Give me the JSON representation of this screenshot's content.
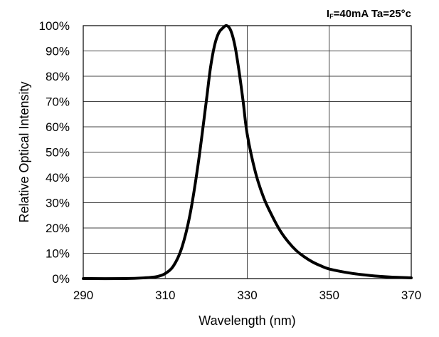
{
  "chart_data": {
    "type": "line",
    "title": "",
    "condition": {
      "prefix": "I",
      "subscript": "F",
      "text": "=40mA Ta=25°c"
    },
    "xlabel": "Wavelength (nm)",
    "ylabel": "Relative Optical Intensity",
    "xlim": [
      290,
      370
    ],
    "ylim": [
      0,
      100
    ],
    "x_ticks": [
      290,
      310,
      330,
      350,
      370
    ],
    "x_tick_labels": [
      "290",
      "310",
      "330",
      "350",
      "370"
    ],
    "y_ticks": [
      0,
      10,
      20,
      30,
      40,
      50,
      60,
      70,
      80,
      90,
      100
    ],
    "y_tick_labels": [
      "0%",
      "10%",
      "20%",
      "30%",
      "40%",
      "50%",
      "60%",
      "70%",
      "80%",
      "90%",
      "100%"
    ],
    "grid": true,
    "series": [
      {
        "name": "Relative Optical Intensity",
        "x": [
          290,
          300,
          305,
          308,
          310,
          312,
          314,
          316,
          318,
          320,
          321,
          322,
          323,
          324,
          325,
          326,
          327,
          328,
          329,
          330,
          332,
          334,
          336,
          338,
          340,
          342,
          344,
          346,
          348,
          350,
          355,
          360,
          365,
          370
        ],
        "y": [
          0,
          0,
          0.3,
          0.8,
          2,
          5,
          12,
          25,
          45,
          70,
          83,
          92,
          97,
          99,
          100,
          98,
          92,
          82,
          70,
          57,
          42,
          32,
          25,
          19,
          14.5,
          11,
          8.5,
          6.5,
          5,
          3.8,
          2.2,
          1.2,
          0.6,
          0.3
        ]
      }
    ]
  }
}
